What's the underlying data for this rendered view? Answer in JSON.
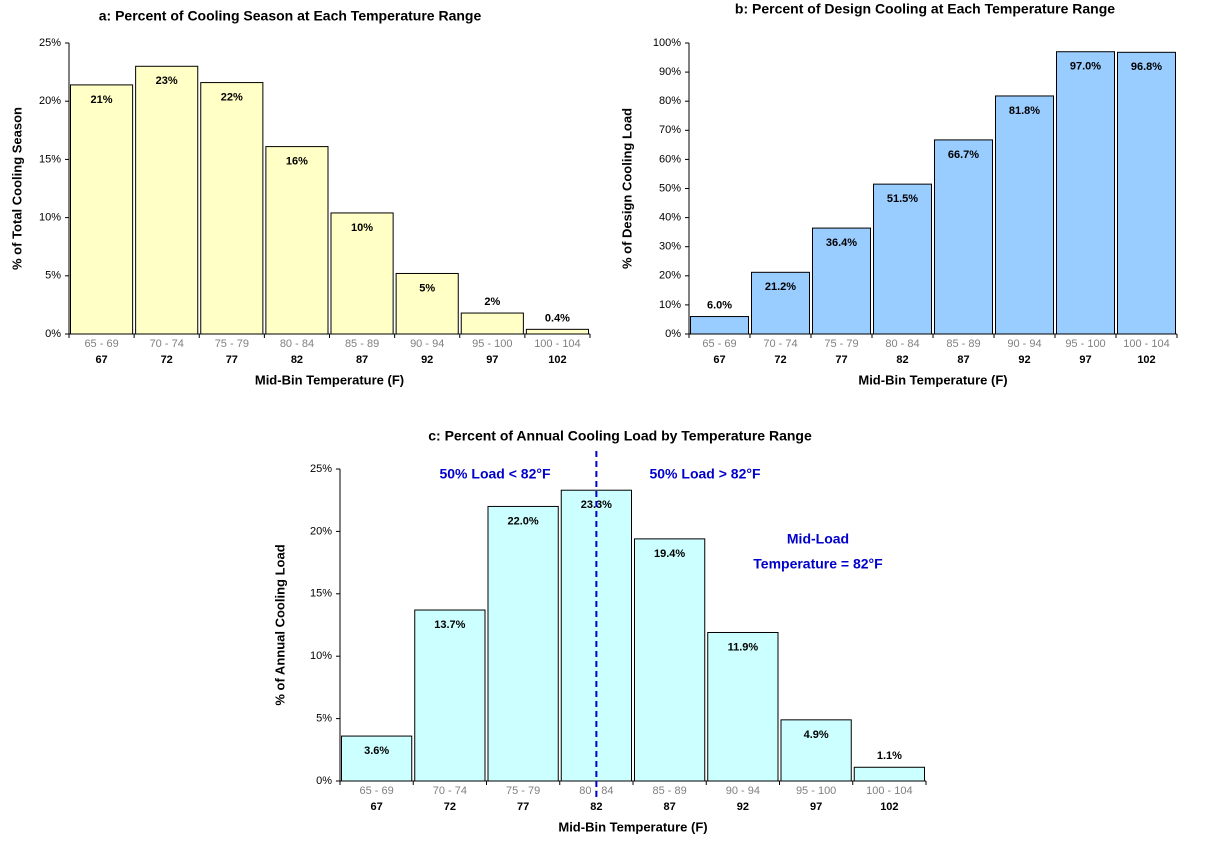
{
  "chart_data": [
    {
      "type": "bar",
      "title": "a:  Percent of Cooling Season at Each Temperature Range",
      "xlabel": "Mid-Bin Temperature  (F)",
      "ylabel": "% of Total Cooling Season",
      "categories": [
        "65 - 69",
        "70 - 74",
        "75 - 79",
        "80 - 84",
        "85 - 89",
        "90 - 94",
        "95 - 100",
        "100 - 104"
      ],
      "mid_bins": [
        67,
        72,
        77,
        82,
        87,
        92,
        97,
        102
      ],
      "values": [
        21.4,
        23.0,
        21.6,
        16.1,
        10.4,
        5.2,
        1.8,
        0.4
      ],
      "value_labels": [
        "21%",
        "23%",
        "22%",
        "16%",
        "10%",
        "5%",
        "2%",
        "0.4%"
      ],
      "color": "#ffffc6",
      "ylim": [
        0,
        25
      ],
      "yticks": [
        {
          "value": 0,
          "label": "0%"
        },
        {
          "value": 5,
          "label": "5%"
        },
        {
          "value": 10,
          "label": "10%"
        },
        {
          "value": 15,
          "label": "15%"
        },
        {
          "value": 20,
          "label": "20%"
        },
        {
          "value": 25,
          "label": "25%"
        }
      ],
      "grid": false
    },
    {
      "type": "bar",
      "title": "b:  Percent of Design Cooling at Each Temperature Range",
      "xlabel": "Mid-Bin Temperature  (F)",
      "ylabel": "% of Design Cooling Load",
      "categories": [
        "65 - 69",
        "70 - 74",
        "75 - 79",
        "80 - 84",
        "85 - 89",
        "90 - 94",
        "95 - 100",
        "100 - 104"
      ],
      "mid_bins": [
        67,
        72,
        77,
        82,
        87,
        92,
        97,
        102
      ],
      "values": [
        6.0,
        21.2,
        36.4,
        51.5,
        66.7,
        81.8,
        97.0,
        96.8
      ],
      "value_labels": [
        "6.0%",
        "21.2%",
        "36.4%",
        "51.5%",
        "66.7%",
        "81.8%",
        "97.0%",
        "96.8%"
      ],
      "color": "#99ccff",
      "ylim": [
        0,
        100
      ],
      "yticks": [
        {
          "value": 0,
          "label": "0%"
        },
        {
          "value": 10,
          "label": "10%"
        },
        {
          "value": 20,
          "label": "20%"
        },
        {
          "value": 30,
          "label": "30%"
        },
        {
          "value": 40,
          "label": "40%"
        },
        {
          "value": 50,
          "label": "50%"
        },
        {
          "value": 60,
          "label": "60%"
        },
        {
          "value": 70,
          "label": "70%"
        },
        {
          "value": 80,
          "label": "80%"
        },
        {
          "value": 90,
          "label": "90%"
        },
        {
          "value": 100,
          "label": "100%"
        }
      ],
      "grid": false
    },
    {
      "type": "bar",
      "title": "c:  Percent of Annual Cooling Load by Temperature Range",
      "xlabel": "Mid-Bin Temperature  (F)",
      "ylabel": "% of Annual Cooling Load",
      "categories": [
        "65 - 69",
        "70 - 74",
        "75 - 79",
        "80 - 84",
        "85 - 89",
        "90 - 94",
        "95 - 100",
        "100 - 104"
      ],
      "mid_bins": [
        67,
        72,
        77,
        82,
        87,
        92,
        97,
        102
      ],
      "values": [
        3.6,
        13.7,
        22.0,
        23.3,
        19.4,
        11.9,
        4.9,
        1.1
      ],
      "value_labels": [
        "3.6%",
        "13.7%",
        "22.0%",
        "23.3%",
        "19.4%",
        "11.9%",
        "4.9%",
        "1.1%"
      ],
      "color": "#ccffff",
      "ylim": [
        0,
        25
      ],
      "yticks": [
        {
          "value": 0,
          "label": "0%"
        },
        {
          "value": 5,
          "label": "5%"
        },
        {
          "value": 10,
          "label": "10%"
        },
        {
          "value": 15,
          "label": "15%"
        },
        {
          "value": 20,
          "label": "20%"
        },
        {
          "value": 25,
          "label": "25%"
        }
      ],
      "grid": false,
      "reference_line": {
        "value": 82,
        "color": "#0000cc",
        "style": "dashed"
      },
      "annotations": [
        "50% Load < 82°F",
        "50% Load > 82°F",
        "Mid-Load",
        "Temperature = 82°F"
      ]
    }
  ]
}
